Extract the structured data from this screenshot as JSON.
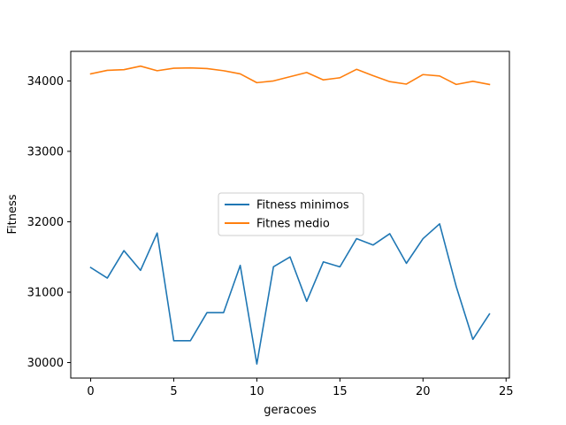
{
  "chart_data": {
    "type": "line",
    "title": "",
    "xlabel": "geracoes",
    "ylabel": "Fitness",
    "xlim": [
      -1.2,
      25.2
    ],
    "ylim": [
      29780,
      34420
    ],
    "xticks": [
      0,
      5,
      10,
      15,
      20,
      25
    ],
    "yticks": [
      30000,
      31000,
      32000,
      33000,
      34000
    ],
    "grid": false,
    "legend_position": "center",
    "x": [
      0,
      1,
      2,
      3,
      4,
      5,
      6,
      7,
      8,
      9,
      10,
      11,
      12,
      13,
      14,
      15,
      16,
      17,
      18,
      19,
      20,
      21,
      22,
      23,
      24
    ],
    "series": [
      {
        "name": "Fitness minimos",
        "color": "#1f77b4",
        "values": [
          31350,
          31200,
          31590,
          31310,
          31840,
          30310,
          30310,
          30710,
          30710,
          31380,
          29980,
          31360,
          31500,
          30870,
          31430,
          31360,
          31760,
          31670,
          31830,
          31410,
          31760,
          31970,
          31080,
          30330,
          30690
        ]
      },
      {
        "name": "Fitnes medio",
        "color": "#ff7f0e",
        "values": [
          34100,
          34150,
          34160,
          34210,
          34145,
          34180,
          34185,
          34175,
          34145,
          34100,
          33975,
          34000,
          34060,
          34120,
          34015,
          34045,
          34165,
          34075,
          33990,
          33955,
          34090,
          34070,
          33950,
          33995,
          33950
        ]
      }
    ]
  }
}
